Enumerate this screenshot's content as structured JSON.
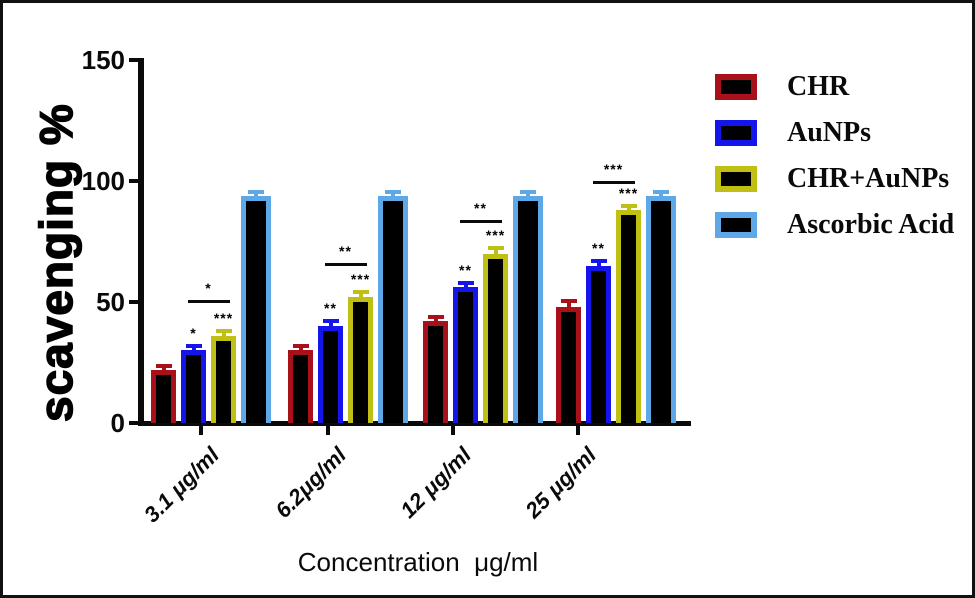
{
  "chart_data": {
    "type": "bar",
    "title": "",
    "ylabel": "scavenging %",
    "xlabel": "Concentration  μg/ml",
    "ylim": [
      0,
      150
    ],
    "yticks": [
      0,
      50,
      100,
      150
    ],
    "grid": false,
    "bar_fill": "#000000",
    "legend_position": "top-right",
    "categories": [
      "3.1 μg/ml",
      "6.2μg/ml",
      "12 μg/ml",
      "25 μg/ml"
    ],
    "series": [
      {
        "name": "CHR",
        "color": "#A8111A",
        "values": [
          22,
          30,
          42,
          48
        ],
        "errors": [
          1.5,
          2,
          2,
          2.5
        ],
        "sig_stars": [
          "",
          "",
          "",
          ""
        ]
      },
      {
        "name": "AuNPs",
        "color": "#1414EB",
        "values": [
          30,
          40,
          56,
          65
        ],
        "errors": [
          2,
          2,
          2,
          2
        ],
        "sig_stars": [
          "*",
          "**",
          "**",
          "**"
        ]
      },
      {
        "name": "CHR+AuNPs",
        "color": "#BFC013",
        "values": [
          36,
          52,
          70,
          88
        ],
        "errors": [
          2,
          2,
          2.5,
          1.5
        ],
        "sig_stars": [
          "***",
          "***",
          "***",
          "***"
        ]
      },
      {
        "name": "Ascorbic Acid",
        "color": "#5FA8E8",
        "values": [
          94,
          94,
          94,
          94
        ],
        "errors": [
          1.5,
          1.5,
          1.5,
          1.5
        ],
        "sig_stars": [
          "",
          "",
          "",
          ""
        ]
      }
    ],
    "comparisons": [
      {
        "group_index": 0,
        "from_series": "AuNPs",
        "to_series": "CHR+AuNPs",
        "label": "*",
        "line_y": 51
      },
      {
        "group_index": 1,
        "from_series": "AuNPs",
        "to_series": "CHR+AuNPs",
        "label": "**",
        "line_y": 66
      },
      {
        "group_index": 2,
        "from_series": "AuNPs",
        "to_series": "CHR+AuNPs",
        "label": "**",
        "line_y": 84
      },
      {
        "group_index": 3,
        "from_series": "AuNPs",
        "to_series": "CHR+AuNPs",
        "label": "***",
        "line_y": 100
      }
    ]
  }
}
